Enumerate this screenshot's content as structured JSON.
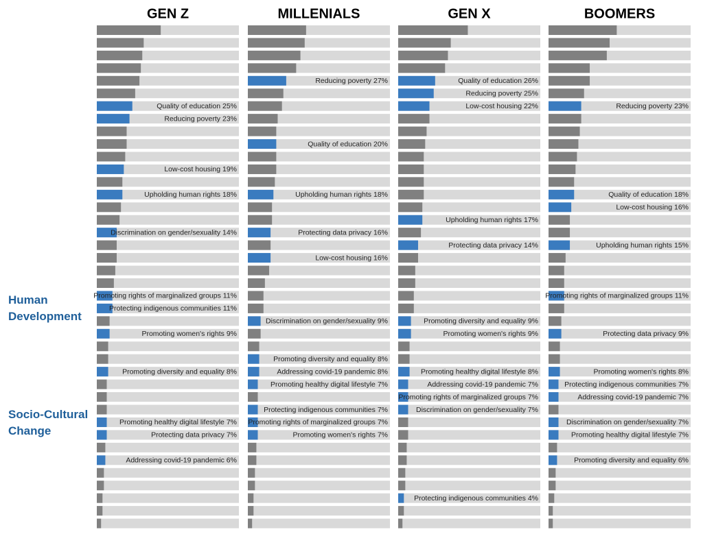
{
  "chart_data": {
    "type": "bar",
    "xlim": [
      0,
      100
    ],
    "color": "#808080",
    "highlight_color": "#3a7bbf",
    "track_color": "#d9d9d9",
    "annotations": [
      "Human Development",
      "Socio-Cultural Change"
    ],
    "panels": [
      {
        "title": "GEN Z",
        "values": [
          45,
          33,
          32,
          31,
          30,
          27,
          25,
          23,
          21,
          21,
          20,
          19,
          18,
          18,
          17,
          16,
          14,
          14,
          14,
          13,
          12,
          11,
          11,
          9,
          9,
          8,
          8,
          8,
          7,
          7,
          7,
          7,
          7,
          6,
          6,
          5,
          5,
          4,
          4,
          3
        ],
        "value_labels": [
          null,
          null,
          null,
          null,
          null,
          null,
          "Quality of education 25%",
          "Reducing poverty 23%",
          null,
          null,
          null,
          "Low-cost housing 19%",
          null,
          "Upholding human rights 18%",
          null,
          null,
          "Discrimination on gender/sexuality 14%",
          null,
          null,
          null,
          null,
          "Promoting rights of marginalized groups 11%",
          "Protecting indigenous communities 11%",
          null,
          "Promoting women's rights 9%",
          null,
          null,
          "Promoting diversity and equality 8%",
          null,
          null,
          null,
          "Promoting healthy digital lifestyle 7%",
          "Protecting data privacy 7%",
          null,
          "Addressing covid-19 pandemic 6%",
          null,
          null,
          null,
          null,
          null
        ]
      },
      {
        "title": "MILLENIALS",
        "values": [
          41,
          40,
          37,
          34,
          27,
          25,
          24,
          21,
          20,
          20,
          20,
          20,
          19,
          18,
          17,
          17,
          16,
          16,
          16,
          15,
          12,
          11,
          11,
          9,
          9,
          8,
          8,
          8,
          7,
          7,
          7,
          7,
          7,
          6,
          6,
          5,
          5,
          4,
          4,
          3
        ],
        "value_labels": [
          null,
          null,
          null,
          null,
          "Reducing poverty 27%",
          null,
          null,
          null,
          null,
          "Quality of education 20%",
          null,
          null,
          null,
          "Upholding human rights 18%",
          null,
          null,
          "Protecting data privacy 16%",
          null,
          "Low-cost housing 16%",
          null,
          null,
          null,
          null,
          "Discrimination on gender/sexuality 9%",
          null,
          null,
          "Promoting diversity and equality 8%",
          "Addressing covid-19 pandemic 8%",
          "Promoting healthy digital lifestyle 7%",
          null,
          "Protecting indigenous communities 7%",
          "Promoting rights of marginalized groups 7%",
          "Promoting women's rights 7%",
          null,
          null,
          null,
          null,
          null,
          null,
          null
        ]
      },
      {
        "title": "GEN X",
        "values": [
          49,
          37,
          35,
          33,
          26,
          25,
          22,
          22,
          20,
          19,
          18,
          18,
          18,
          18,
          17,
          17,
          16,
          14,
          14,
          12,
          12,
          11,
          11,
          9,
          9,
          8,
          8,
          8,
          7,
          7,
          7,
          7,
          7,
          6,
          6,
          5,
          5,
          4,
          4,
          3
        ],
        "value_labels": [
          null,
          null,
          null,
          null,
          "Quality of education 26%",
          "Reducing poverty 25%",
          "Low-cost housing 22%",
          null,
          null,
          null,
          null,
          null,
          null,
          null,
          null,
          "Upholding human rights 17%",
          null,
          "Protecting data privacy 14%",
          null,
          null,
          null,
          null,
          null,
          "Promoting diversity and equality 9%",
          "Promoting women's rights 9%",
          null,
          null,
          "Promoting healthy digital lifestyle 8%",
          "Addressing covid-19 pandemic 7%",
          "Promoting rights of marginalized groups 7%",
          "Discrimination on gender/sexuality 7%",
          null,
          null,
          null,
          null,
          null,
          null,
          "Protecting indigenous communities 4%",
          null,
          null
        ]
      },
      {
        "title": "BOOMERS",
        "values": [
          48,
          43,
          41,
          29,
          29,
          25,
          23,
          23,
          22,
          21,
          20,
          19,
          18,
          18,
          16,
          15,
          15,
          15,
          12,
          11,
          11,
          11,
          11,
          9,
          9,
          8,
          8,
          8,
          7,
          7,
          7,
          7,
          7,
          6,
          6,
          5,
          5,
          4,
          3,
          3
        ],
        "value_labels": [
          null,
          null,
          null,
          null,
          null,
          null,
          "Reducing poverty 23%",
          null,
          null,
          null,
          null,
          null,
          null,
          "Quality of education 18%",
          "Low-cost housing 16%",
          null,
          null,
          "Upholding human rights 15%",
          null,
          null,
          null,
          "Promoting rights of marginalized groups 11%",
          null,
          null,
          "Protecting data privacy 9%",
          null,
          null,
          "Promoting women's rights 8%",
          "Protecting indigenous communities 7%",
          "Addressing covid-19 pandemic 7%",
          null,
          "Discrimination on gender/sexuality 7%",
          "Promoting healthy digital lifestyle 7%",
          null,
          "Promoting diversity and equality 6%",
          null,
          null,
          null,
          null,
          null
        ]
      }
    ]
  }
}
